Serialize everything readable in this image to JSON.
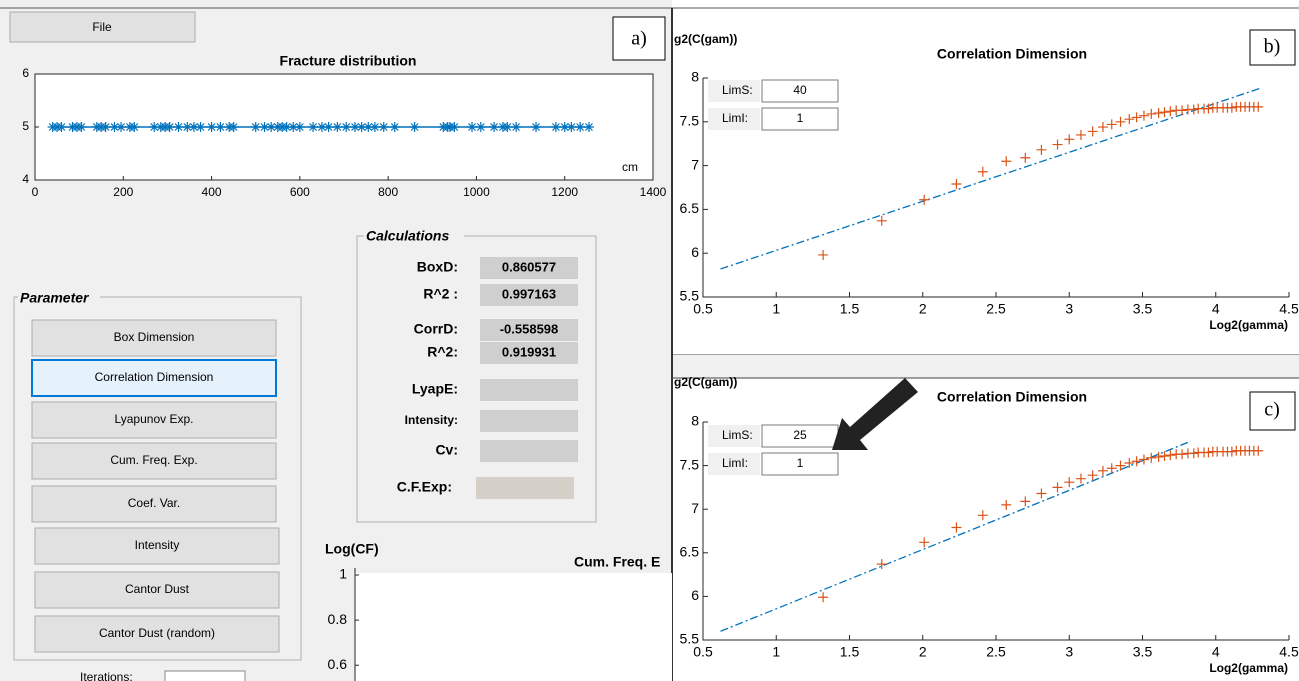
{
  "panel_a": {
    "file_button": "File",
    "label": "a)",
    "fracture_chart": {
      "type": "scatter",
      "title": "Fracture distribution",
      "x_unit": "cm",
      "xlim": [
        0,
        1400
      ],
      "xticks": [
        0,
        200,
        400,
        600,
        800,
        1000,
        1200,
        1400
      ],
      "ylim": [
        4,
        6
      ],
      "yticks": [
        4,
        5,
        6
      ],
      "color": "#0072bd",
      "y": 5,
      "x": [
        40,
        50,
        60,
        85,
        95,
        105,
        140,
        150,
        160,
        180,
        195,
        215,
        225,
        270,
        285,
        295,
        305,
        325,
        345,
        360,
        375,
        400,
        420,
        440,
        450,
        500,
        520,
        535,
        550,
        560,
        570,
        585,
        600,
        630,
        650,
        665,
        685,
        705,
        725,
        740,
        755,
        770,
        790,
        815,
        860,
        925,
        935,
        940,
        950,
        990,
        1010,
        1040,
        1060,
        1070,
        1090,
        1135,
        1180,
        1200,
        1215,
        1235,
        1255
      ]
    },
    "calculations": {
      "title": "Calculations",
      "rows": [
        {
          "label": "BoxD:",
          "value": "0.860577"
        },
        {
          "label": "R^2 :",
          "value": "0.997163"
        },
        {
          "label": "CorrD:",
          "value": "-0.558598"
        },
        {
          "label": "R^2:",
          "value": "0.919931"
        },
        {
          "label": "LyapE:"
        },
        {
          "label": "Intensity:"
        },
        {
          "label": "Cv:"
        },
        {
          "label": "C.F.Exp:"
        }
      ]
    },
    "parameter": {
      "title": "Parameter",
      "buttons": [
        "Box Dimension",
        "Correlation Dimension",
        "Lyapunov Exp.",
        "Cum. Freq. Exp.",
        "Coef. Var.",
        "Intensity",
        "Cantor Dust",
        "Cantor Dust (random)"
      ]
    },
    "cum_freq_chart": {
      "type": "line",
      "title": "Cum. Freq. E",
      "ylabel": "Log(CF)",
      "ylim": [
        0.53,
        1
      ],
      "yticks": [
        0.6,
        0.8,
        1
      ]
    },
    "iterations_label": "Iterations:"
  },
  "panel_b": {
    "label": "b)",
    "lim_s": {
      "label": "LimS:",
      "value": "40"
    },
    "lim_i": {
      "label": "LimI:",
      "value": "1"
    },
    "chart": {
      "type": "scatter",
      "title": "Correlation Dimension",
      "ylabel": "g2(C(gam))",
      "xlabel": "Log2(gamma)",
      "xlim": [
        0.5,
        4.5
      ],
      "xticks": [
        0.5,
        1,
        1.5,
        2,
        2.5,
        3,
        3.5,
        4,
        4.5
      ],
      "ylim": [
        5.5,
        8
      ],
      "yticks": [
        5.5,
        6,
        6.5,
        7,
        7.5,
        8
      ],
      "color": "#d95319",
      "fit_color": "#0072bd",
      "x": [
        1.32,
        1.72,
        2.01,
        2.23,
        2.41,
        2.57,
        2.7,
        2.81,
        2.92,
        3.0,
        3.08,
        3.16,
        3.23,
        3.29,
        3.35,
        3.41,
        3.46,
        3.51,
        3.56,
        3.61,
        3.65,
        3.69,
        3.73,
        3.77,
        3.81,
        3.85,
        3.88,
        3.92,
        3.95,
        3.98,
        4.01,
        4.05,
        4.08,
        4.11,
        4.14,
        4.17,
        4.2,
        4.23,
        4.26,
        4.29
      ],
      "y": [
        5.98,
        6.37,
        6.61,
        6.79,
        6.93,
        7.05,
        7.09,
        7.18,
        7.24,
        7.3,
        7.35,
        7.39,
        7.44,
        7.47,
        7.5,
        7.53,
        7.55,
        7.57,
        7.59,
        7.6,
        7.61,
        7.62,
        7.63,
        7.63,
        7.64,
        7.64,
        7.65,
        7.65,
        7.65,
        7.66,
        7.66,
        7.66,
        7.66,
        7.66,
        7.67,
        7.67,
        7.67,
        7.67,
        7.67,
        7.67
      ],
      "fit": {
        "x": [
          0.62,
          4.3
        ],
        "y": [
          5.82,
          7.88
        ]
      }
    }
  },
  "panel_c": {
    "label": "c)",
    "lim_s": {
      "label": "LimS:",
      "value": "25"
    },
    "lim_i": {
      "label": "LimI:",
      "value": "1"
    },
    "chart": {
      "type": "scatter",
      "title": "Correlation Dimension",
      "ylabel": "g2(C(gam))",
      "xlabel": "Log2(gamma)",
      "xlim": [
        0.5,
        4.5
      ],
      "xticks": [
        0.5,
        1,
        1.5,
        2,
        2.5,
        3,
        3.5,
        4,
        4.5
      ],
      "ylim": [
        5.5,
        8
      ],
      "yticks": [
        5.5,
        6,
        6.5,
        7,
        7.5,
        8
      ],
      "color": "#d95319",
      "fit_color": "#0072bd",
      "x": [
        1.32,
        1.72,
        2.01,
        2.23,
        2.41,
        2.57,
        2.7,
        2.81,
        2.92,
        3.0,
        3.08,
        3.16,
        3.23,
        3.29,
        3.35,
        3.41,
        3.46,
        3.51,
        3.56,
        3.61,
        3.65,
        3.69,
        3.73,
        3.77,
        3.81,
        3.85,
        3.88,
        3.92,
        3.95,
        3.98,
        4.01,
        4.05,
        4.08,
        4.11,
        4.14,
        4.17,
        4.2,
        4.23,
        4.26,
        4.29
      ],
      "y": [
        5.99,
        6.37,
        6.62,
        6.79,
        6.93,
        7.05,
        7.09,
        7.18,
        7.25,
        7.31,
        7.35,
        7.39,
        7.44,
        7.47,
        7.5,
        7.53,
        7.55,
        7.57,
        7.59,
        7.6,
        7.61,
        7.62,
        7.63,
        7.63,
        7.64,
        7.64,
        7.65,
        7.65,
        7.65,
        7.66,
        7.66,
        7.66,
        7.66,
        7.66,
        7.67,
        7.67,
        7.67,
        7.67,
        7.67,
        7.67
      ],
      "fit": {
        "x": [
          0.62,
          3.83
        ],
        "y": [
          5.6,
          7.78
        ]
      }
    }
  }
}
